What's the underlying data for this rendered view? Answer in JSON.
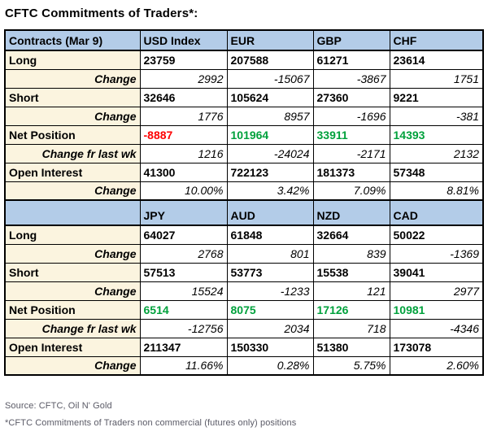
{
  "title": "CFTC Commitments of Traders*:",
  "colors": {
    "header_bg": "#b3cce8",
    "label_bg": "#fbf4df",
    "positive_value": "#00a13c",
    "negative_value": "#fe0000",
    "border": "#000000",
    "footer_text": "#5a5a66"
  },
  "chart_data": [
    {
      "type": "table",
      "header": [
        "Contracts (Mar 9)",
        "USD Index",
        "EUR",
        "GBP",
        "CHF"
      ],
      "rows": [
        {
          "label": "Long",
          "style": "data",
          "values": [
            "23759",
            "207588",
            "61271",
            "23614"
          ]
        },
        {
          "label": "Change",
          "style": "change",
          "values": [
            "2992",
            "-15067",
            "-3867",
            "1751"
          ]
        },
        {
          "label": "Short",
          "style": "data",
          "values": [
            "32646",
            "105624",
            "27360",
            "9221"
          ]
        },
        {
          "label": "Change",
          "style": "change",
          "values": [
            "1776",
            "8957",
            "-1696",
            "-381"
          ]
        },
        {
          "label": "Net Position",
          "style": "net",
          "values": [
            "-8887",
            "101964",
            "33911",
            "14393"
          ]
        },
        {
          "label": "Change fr last wk",
          "style": "change",
          "values": [
            "1216",
            "-24024",
            "-2171",
            "2132"
          ]
        },
        {
          "label": "Open Interest",
          "style": "open",
          "values": [
            "41300",
            "722123",
            "181373",
            "57348"
          ]
        },
        {
          "label": "Change",
          "style": "change",
          "values": [
            "10.00%",
            "3.42%",
            "7.09%",
            "8.81%"
          ]
        }
      ]
    },
    {
      "type": "table",
      "header": [
        "",
        "JPY",
        "AUD",
        "NZD",
        "CAD"
      ],
      "rows": [
        {
          "label": "Long",
          "style": "data",
          "values": [
            "64027",
            "61848",
            "32664",
            "50022"
          ]
        },
        {
          "label": "Change",
          "style": "change",
          "values": [
            "2768",
            "801",
            "839",
            "-1369"
          ]
        },
        {
          "label": "Short",
          "style": "data",
          "values": [
            "57513",
            "53773",
            "15538",
            "39041"
          ]
        },
        {
          "label": "Change",
          "style": "change",
          "values": [
            "15524",
            "-1233",
            "121",
            "2977"
          ]
        },
        {
          "label": "Net Position",
          "style": "net",
          "values": [
            "6514",
            "8075",
            "17126",
            "10981"
          ]
        },
        {
          "label": "Change fr last wk",
          "style": "change",
          "values": [
            "-12756",
            "2034",
            "718",
            "-4346"
          ]
        },
        {
          "label": "Open Interest",
          "style": "open",
          "values": [
            "211347",
            "150330",
            "51380",
            "173078"
          ]
        },
        {
          "label": "Change",
          "style": "change",
          "values": [
            "11.66%",
            "0.28%",
            "5.75%",
            "2.60%"
          ]
        }
      ]
    }
  ],
  "footer": {
    "source": "Source: CFTC, Oil N' Gold",
    "note": "*CFTC Commitments of Traders non commercial (futures only) positions"
  }
}
